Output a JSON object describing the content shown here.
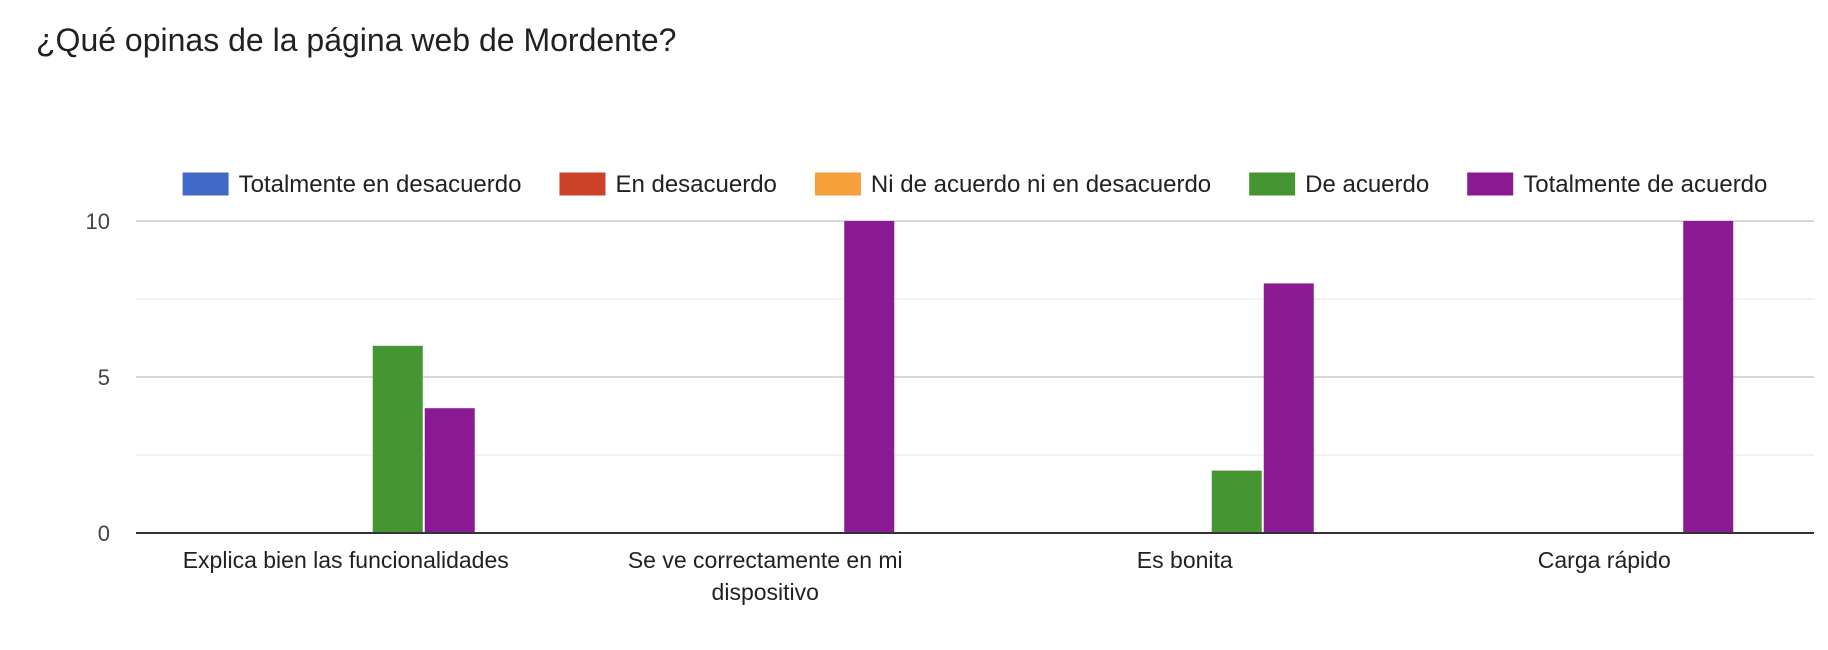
{
  "chart_data": {
    "type": "bar",
    "title": "¿Qué opinas de la página web de Mordente?",
    "xlabel": "",
    "ylabel": "",
    "categories": [
      [
        "Explica bien las funcionalidades"
      ],
      [
        "Se ve correctamente en mi",
        "dispositivo"
      ],
      [
        "Es bonita"
      ],
      [
        "Carga rápido"
      ]
    ],
    "series": [
      {
        "name": "Totalmente en desacuerdo",
        "color": "#4169c9",
        "values": [
          0,
          0,
          0,
          0
        ]
      },
      {
        "name": "En desacuerdo",
        "color": "#cc4127",
        "values": [
          0,
          0,
          0,
          0
        ]
      },
      {
        "name": "Ni de acuerdo ni en desacuerdo",
        "color": "#f4a03b",
        "values": [
          0,
          0,
          0,
          0
        ]
      },
      {
        "name": "De acuerdo",
        "color": "#459632",
        "values": [
          6,
          0,
          2,
          0
        ]
      },
      {
        "name": "Totalmente de acuerdo",
        "color": "#8a1a93",
        "values": [
          4,
          10,
          8,
          10
        ]
      }
    ],
    "ylim": [
      0,
      10
    ],
    "yticks": [
      0,
      5,
      10
    ],
    "grid": true,
    "legend": "top"
  }
}
